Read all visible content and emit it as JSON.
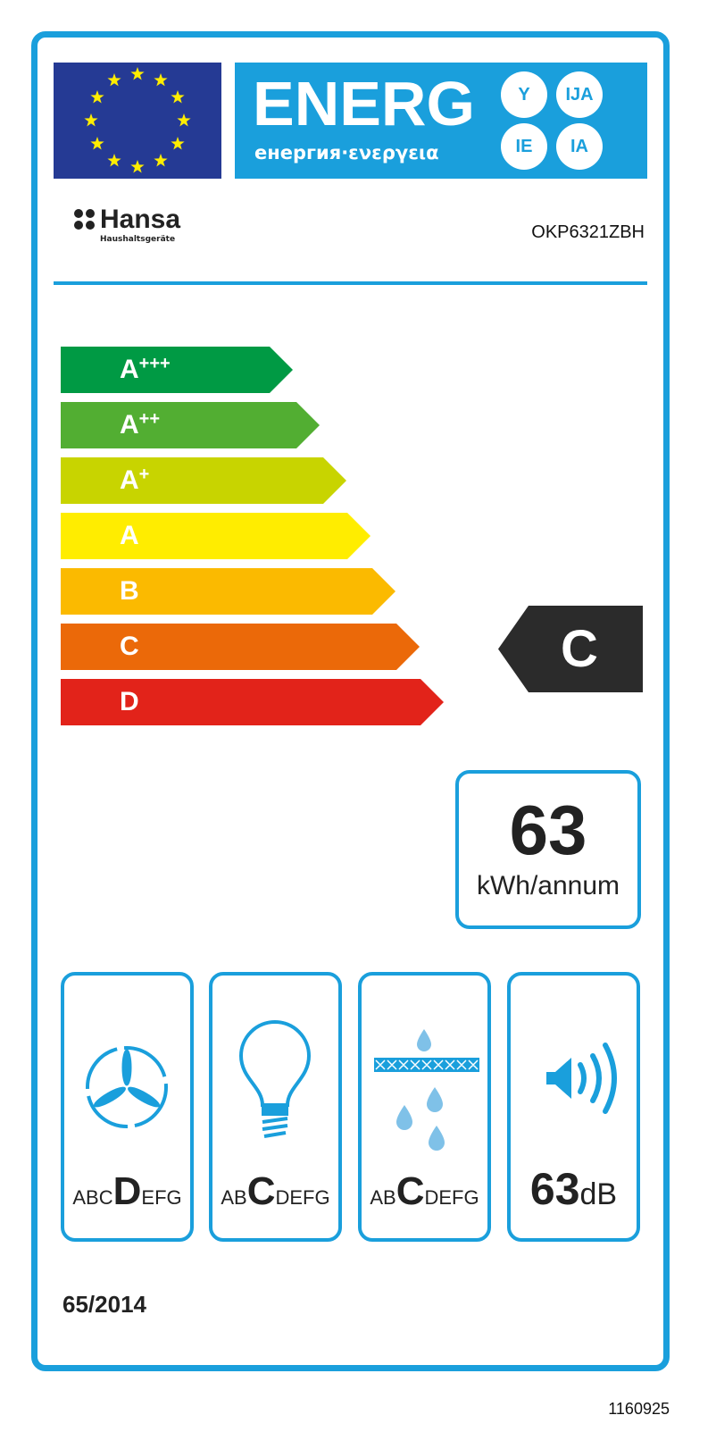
{
  "header": {
    "energy_title": "ENERG",
    "energy_subtitle": "енергия·ενεργεια",
    "suffixes": [
      "Y",
      "IJA",
      "IE",
      "IA"
    ],
    "flag": "eu-flag-icon"
  },
  "supplier": {
    "brand": "Hansa",
    "brand_sub": "Haushaltsgeräte",
    "model": "OKP6321ZBH"
  },
  "scale": [
    {
      "letter": "A",
      "plus": "+++",
      "color": "#009a44"
    },
    {
      "letter": "A",
      "plus": "++",
      "color": "#52ae32"
    },
    {
      "letter": "A",
      "plus": "+",
      "color": "#c8d400"
    },
    {
      "letter": "A",
      "plus": "",
      "color": "#ffed00"
    },
    {
      "letter": "B",
      "plus": "",
      "color": "#fbba00"
    },
    {
      "letter": "C",
      "plus": "",
      "color": "#eb6909"
    },
    {
      "letter": "D",
      "plus": "",
      "color": "#e2231a"
    }
  ],
  "rating": {
    "class": "C"
  },
  "consumption": {
    "value": "63",
    "unit": "kWh/annum"
  },
  "boxes": [
    {
      "icon": "fan-icon",
      "pre": "ABC",
      "cls": "D",
      "post": "EFG"
    },
    {
      "icon": "light-bulb-icon",
      "pre": "AB",
      "cls": "C",
      "post": "DEFG"
    },
    {
      "icon": "grease-filter-icon",
      "pre": "AB",
      "cls": "C",
      "post": "DEFG"
    },
    {
      "icon": "speaker-icon",
      "value": "63",
      "unit": "dB"
    }
  ],
  "regulation": "65/2014",
  "label_code": "1160925",
  "colors": {
    "frame": "#1a9fdc",
    "flag": "#253a94",
    "indicator": "#2b2b2b"
  }
}
